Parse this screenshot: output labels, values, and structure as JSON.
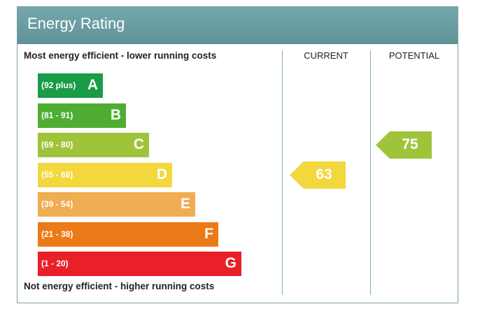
{
  "title": "Energy Rating",
  "top_note": "Most energy efficient - lower running costs",
  "bottom_note": "Not energy efficient - higher running costs",
  "columns": {
    "current": "CURRENT",
    "potential": "POTENTIAL"
  },
  "chart_data": {
    "type": "bar",
    "title": "Energy Rating",
    "bands": [
      {
        "range": "(92 plus)",
        "letter": "A",
        "color": "#1a9b48"
      },
      {
        "range": "(81 - 91)",
        "letter": "B",
        "color": "#4fae32"
      },
      {
        "range": "(69 - 80)",
        "letter": "C",
        "color": "#9fc43a"
      },
      {
        "range": "(55 - 68)",
        "letter": "D",
        "color": "#f2d73d"
      },
      {
        "range": "(39 - 54)",
        "letter": "E",
        "color": "#f0ad52"
      },
      {
        "range": "(21 - 38)",
        "letter": "F",
        "color": "#ec7a18"
      },
      {
        "range": "(1 - 20)",
        "letter": "G",
        "color": "#e92028"
      }
    ],
    "current": {
      "value": 63,
      "band": "D",
      "color": "#f2d73d"
    },
    "potential": {
      "value": 75,
      "band": "C",
      "color": "#9fc43a"
    }
  }
}
